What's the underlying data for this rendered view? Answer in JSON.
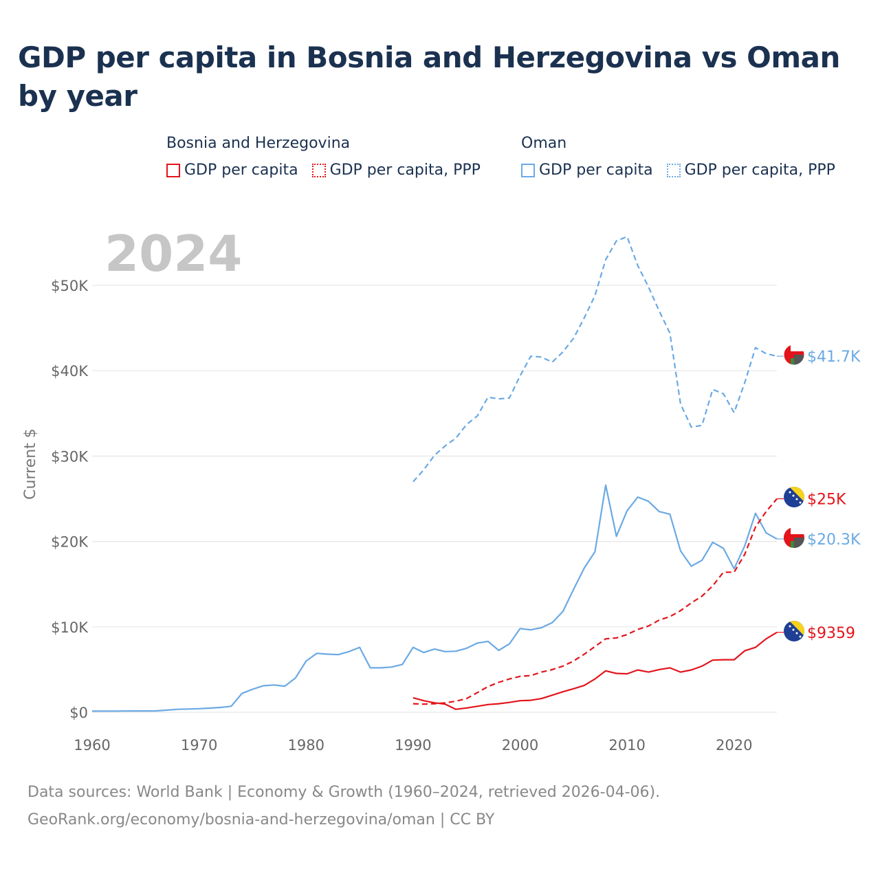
{
  "title": "GDP per capita in Bosnia and Herzegovina vs Oman by year",
  "legend": {
    "groups": [
      {
        "country": "Bosnia and Herzegovina",
        "color": "#e3141b",
        "items": [
          {
            "label": "GDP per capita",
            "style": "solid"
          },
          {
            "label": "GDP per capita, PPP",
            "style": "dashed"
          }
        ]
      },
      {
        "country": "Oman",
        "color": "#6aa9e4",
        "items": [
          {
            "label": "GDP per capita",
            "style": "solid"
          },
          {
            "label": "GDP per capita, PPP",
            "style": "dashed"
          }
        ]
      }
    ]
  },
  "chart_data": {
    "type": "line",
    "current_year": "2024",
    "ylabel": "Current $",
    "ylim": [
      0,
      56000
    ],
    "xlim": [
      1960,
      2024
    ],
    "y_ticks": [
      {
        "value": 0,
        "label": "$0"
      },
      {
        "value": 10000,
        "label": "$10K"
      },
      {
        "value": 20000,
        "label": "$20K"
      },
      {
        "value": 30000,
        "label": "$30K"
      },
      {
        "value": 40000,
        "label": "$40K"
      },
      {
        "value": 50000,
        "label": "$50K"
      }
    ],
    "x_ticks": [
      1960,
      1970,
      1980,
      1990,
      2000,
      2010,
      2020
    ],
    "series": [
      {
        "name": "Oman GDP per capita, PPP",
        "country": "Oman",
        "color": "#6aa9e4",
        "dash": true,
        "end_label": "$41.7K",
        "flag": "oman",
        "start_year": 1990,
        "values": [
          27000,
          28400,
          30100,
          31200,
          32100,
          33700,
          34700,
          36900,
          36700,
          36800,
          39400,
          41700,
          41600,
          41000,
          42200,
          43800,
          46200,
          48800,
          53000,
          55200,
          55700,
          52300,
          49800,
          47000,
          44400,
          36100,
          33400,
          33600,
          37800,
          37300,
          35100,
          38600,
          42700,
          42000,
          41700
        ]
      },
      {
        "name": "Oman GDP per capita",
        "country": "Oman",
        "color": "#6aa9e4",
        "dash": false,
        "end_label": "$20.3K",
        "flag": "oman",
        "start_year": 1960,
        "values": [
          130,
          135,
          140,
          145,
          150,
          155,
          160,
          250,
          350,
          380,
          420,
          480,
          560,
          700,
          2200,
          2700,
          3100,
          3200,
          3050,
          4000,
          6000,
          6900,
          6800,
          6750,
          7100,
          7600,
          5200,
          5200,
          5300,
          5600,
          7600,
          7000,
          7400,
          7100,
          7150,
          7500,
          8100,
          8300,
          7250,
          8000,
          9800,
          9650,
          9900,
          10500,
          11800,
          14400,
          16900,
          18800,
          26600,
          20600,
          23600,
          25200,
          24700,
          23500,
          23200,
          18900,
          17100,
          17800,
          19900,
          19200,
          16800,
          19500,
          23300,
          21000,
          20300
        ]
      },
      {
        "name": "Bosnia and Herzegovina GDP per capita, PPP",
        "country": "Bosnia and Herzegovina",
        "color": "#e3141b",
        "dash": true,
        "end_label": "$25K",
        "flag": "bosnia",
        "start_year": 1990,
        "values": [
          1000,
          950,
          1000,
          1100,
          1300,
          1600,
          2300,
          3000,
          3500,
          3900,
          4200,
          4300,
          4700,
          5000,
          5400,
          6000,
          6800,
          7700,
          8600,
          8700,
          9100,
          9700,
          10100,
          10800,
          11200,
          11900,
          12800,
          13600,
          14800,
          16400,
          16400,
          18500,
          21700,
          23500,
          25000
        ]
      },
      {
        "name": "Bosnia and Herzegovina GDP per capita",
        "country": "Bosnia and Herzegovina",
        "color": "#e3141b",
        "dash": false,
        "end_label": "$9359",
        "flag": "bosnia",
        "start_year": 1990,
        "values": [
          1700,
          1350,
          1100,
          950,
          350,
          500,
          700,
          900,
          1000,
          1150,
          1350,
          1400,
          1600,
          2000,
          2400,
          2750,
          3150,
          3900,
          4850,
          4550,
          4500,
          4950,
          4700,
          5000,
          5200,
          4700,
          4950,
          5400,
          6100,
          6150,
          6150,
          7200,
          7600,
          8600,
          9359
        ]
      }
    ]
  },
  "footer": {
    "line1": "Data sources: World Bank | Economy & Growth (1960–2024, retrieved 2026-04-06).",
    "line2": "GeoRank.org/economy/bosnia-and-herzegovina/oman | CC BY"
  }
}
